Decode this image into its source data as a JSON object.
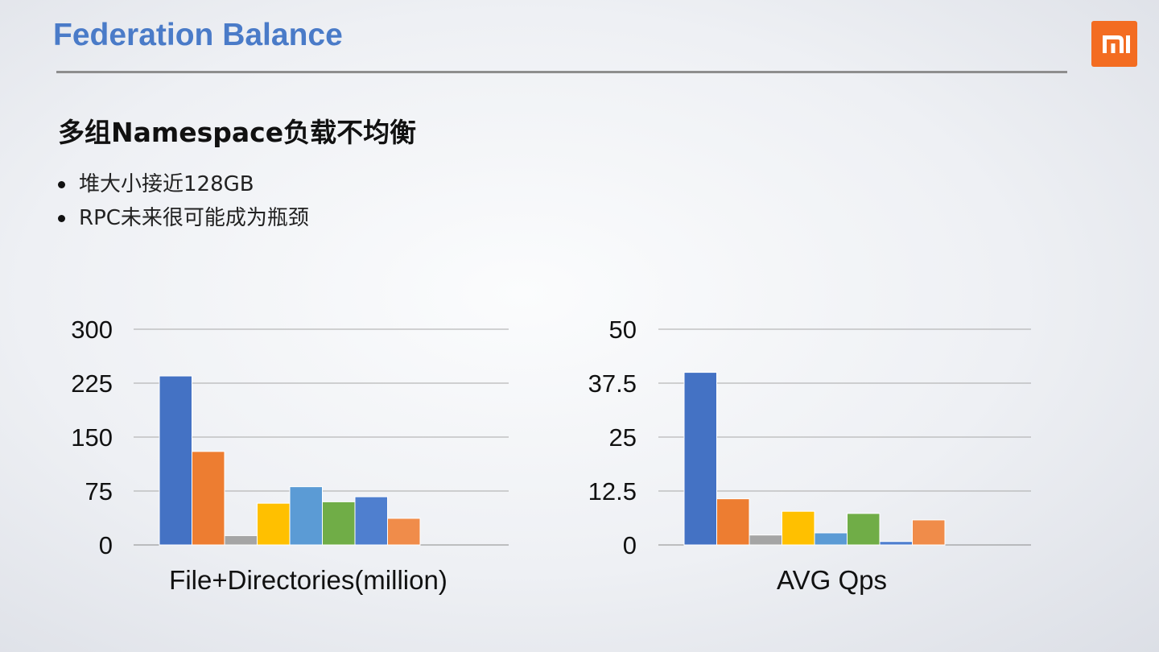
{
  "header": {
    "title": "Federation Balance",
    "logo_text": "MI",
    "logo_color": "#f36c21"
  },
  "content": {
    "subtitle": "多组Namespace负载不均衡",
    "bullets": [
      "堆大小接近128GB",
      "RPC未来很可能成为瓶颈"
    ]
  },
  "chart_data": [
    {
      "type": "bar",
      "xlabel": "File+Directories(million)",
      "ylabel": "",
      "ylim": [
        0,
        300
      ],
      "yticks": [
        "300",
        "225",
        "150",
        "75",
        "0"
      ],
      "grid": true,
      "values": [
        235,
        130,
        13,
        58,
        81,
        60,
        67,
        37
      ],
      "colors": [
        "#4472c4",
        "#ed7d31",
        "#a5a5a5",
        "#ffc000",
        "#5b9bd5",
        "#70ad47",
        "#4f7fcf",
        "#f08c4a"
      ]
    },
    {
      "type": "bar",
      "xlabel": "AVG Qps",
      "ylabel": "",
      "ylim": [
        0,
        50
      ],
      "yticks": [
        "50",
        "37.5",
        "25",
        "12.5",
        "0"
      ],
      "grid": true,
      "values": [
        40,
        10.7,
        2.3,
        7.8,
        2.8,
        7.3,
        0.8,
        5.8
      ],
      "colors": [
        "#4472c4",
        "#ed7d31",
        "#a5a5a5",
        "#ffc000",
        "#5b9bd5",
        "#70ad47",
        "#4f7fcf",
        "#f08c4a"
      ]
    }
  ]
}
